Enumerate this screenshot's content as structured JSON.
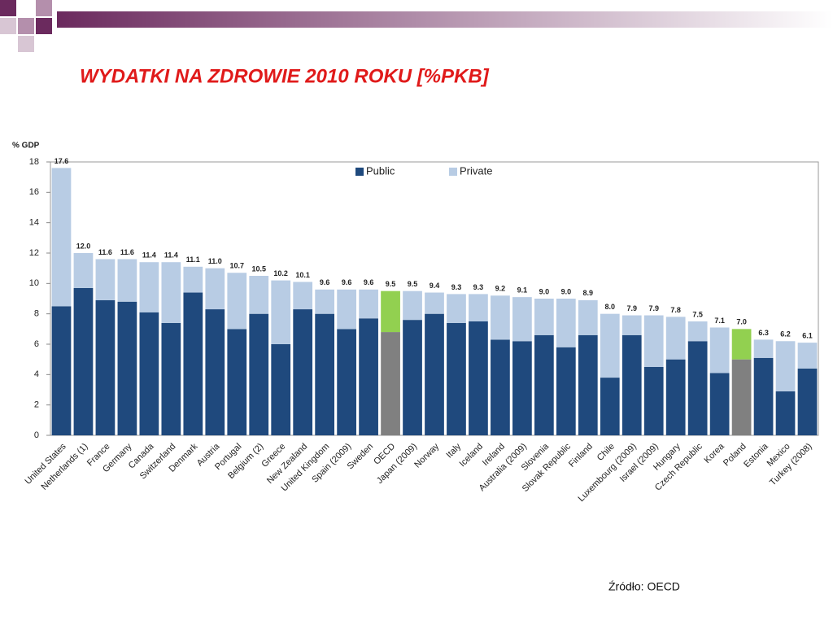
{
  "chart_data": {
    "type": "stacked_bar",
    "title": "WYDATKI NA ZDROWIE 2010 ROKU [%PKB]",
    "y_label": "% GDP",
    "source": "Źródło: OECD",
    "categories": [
      "United States",
      "Netherlands (1)",
      "France",
      "Germany",
      "Canada",
      "Switzerland",
      "Denmark",
      "Austria",
      "Portugal",
      "Belgium (2)",
      "Greece",
      "New Zealand",
      "United Kingdom",
      "Spain (2009)",
      "Sweden",
      "OECD",
      "Japan (2009)",
      "Norway",
      "Italy",
      "Iceland",
      "Ireland",
      "Australia (2009)",
      "Slovenia",
      "Slovak Republic",
      "Finland",
      "Chile",
      "Luxembourg (2009)",
      "Israel (2009)",
      "Hungary",
      "Czech Republic",
      "Korea",
      "Poland",
      "Estonia",
      "Mexico",
      "Turkey (2008)"
    ],
    "series": [
      {
        "name": "Public",
        "color": "#1f497d",
        "colors": [
          "#1f497d",
          "#1f497d",
          "#1f497d",
          "#1f497d",
          "#1f497d",
          "#1f497d",
          "#1f497d",
          "#1f497d",
          "#1f497d",
          "#1f497d",
          "#1f497d",
          "#1f497d",
          "#1f497d",
          "#1f497d",
          "#1f497d",
          "#808080",
          "#1f497d",
          "#1f497d",
          "#1f497d",
          "#1f497d",
          "#1f497d",
          "#1f497d",
          "#1f497d",
          "#1f497d",
          "#1f497d",
          "#1f497d",
          "#1f497d",
          "#1f497d",
          "#1f497d",
          "#1f497d",
          "#1f497d",
          "#808080",
          "#1f497d",
          "#1f497d",
          "#1f497d"
        ],
        "values": [
          8.5,
          9.7,
          8.9,
          8.8,
          8.1,
          7.4,
          9.4,
          8.3,
          7.0,
          8.0,
          6.0,
          8.3,
          8.0,
          7.0,
          7.7,
          6.8,
          7.6,
          8.0,
          7.4,
          7.5,
          6.3,
          6.2,
          6.6,
          5.8,
          6.6,
          3.8,
          6.6,
          4.5,
          5.0,
          6.2,
          4.1,
          5.0,
          5.1,
          2.9,
          4.4
        ]
      },
      {
        "name": "Private",
        "color": "#b8cce4",
        "colors": [
          "#b8cce4",
          "#b8cce4",
          "#b8cce4",
          "#b8cce4",
          "#b8cce4",
          "#b8cce4",
          "#b8cce4",
          "#b8cce4",
          "#b8cce4",
          "#b8cce4",
          "#b8cce4",
          "#b8cce4",
          "#b8cce4",
          "#b8cce4",
          "#b8cce4",
          "#92d050",
          "#b8cce4",
          "#b8cce4",
          "#b8cce4",
          "#b8cce4",
          "#b8cce4",
          "#b8cce4",
          "#b8cce4",
          "#b8cce4",
          "#b8cce4",
          "#b8cce4",
          "#b8cce4",
          "#b8cce4",
          "#b8cce4",
          "#b8cce4",
          "#b8cce4",
          "#92d050",
          "#b8cce4",
          "#b8cce4",
          "#b8cce4"
        ],
        "values": [
          9.1,
          2.3,
          2.7,
          2.8,
          3.3,
          4.0,
          1.7,
          2.7,
          3.7,
          2.5,
          4.2,
          1.8,
          1.6,
          2.6,
          1.9,
          2.7,
          1.9,
          1.4,
          1.9,
          1.8,
          2.9,
          2.9,
          2.4,
          3.2,
          2.3,
          4.2,
          1.3,
          3.4,
          2.8,
          1.3,
          3.0,
          2.0,
          1.2,
          3.3,
          1.7
        ]
      }
    ],
    "totals": [
      17.6,
      12.0,
      11.6,
      11.6,
      11.4,
      11.4,
      11.1,
      11.0,
      10.7,
      10.5,
      10.2,
      10.1,
      9.6,
      9.6,
      9.6,
      9.5,
      9.5,
      9.4,
      9.3,
      9.3,
      9.2,
      9.1,
      9.0,
      9.0,
      8.9,
      8.0,
      7.9,
      7.9,
      7.8,
      7.5,
      7.1,
      7.0,
      6.3,
      6.2,
      6.1
    ],
    "total_labels": [
      "17.6",
      "12.0",
      "11.6",
      "11.6",
      "11.4",
      "11.4",
      "11.1",
      "11.0",
      "10.7",
      "10.5",
      "10.2",
      "10.1",
      "9.6",
      "9.6",
      "9.6",
      "9.5",
      "9.5",
      "9.4",
      "9.3",
      "9.3",
      "9.2",
      "9.1",
      "9.0",
      "9.0",
      "8.9",
      "8.0",
      "7.9",
      "7.9",
      "7.8",
      "7.5",
      "7.1",
      "7.0",
      "6.3",
      "6.2",
      "6.1"
    ],
    "ylim": [
      0,
      18
    ],
    "yticks": [
      0,
      2,
      4,
      6,
      8,
      10,
      12,
      14,
      16,
      18
    ]
  }
}
